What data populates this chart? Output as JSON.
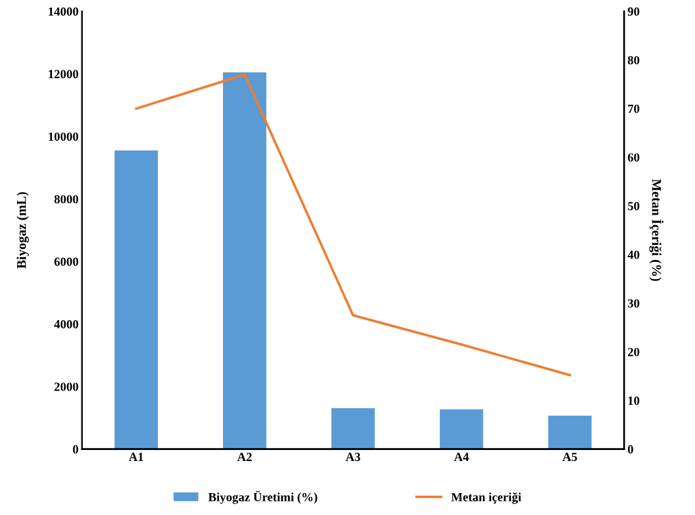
{
  "chart_data": {
    "type": "bar",
    "categories": [
      "A1",
      "A2",
      "A3",
      "A4",
      "A5"
    ],
    "series": [
      {
        "name": "Biyogaz Üretimi (%)",
        "color": "#5b9bd5",
        "values": [
          9550,
          12050,
          1310,
          1270,
          1070
        ]
      },
      {
        "name": "Metan içeriği",
        "type": "line",
        "axis": "y2",
        "color": "#ed7d31",
        "values": [
          70,
          77,
          27.5,
          21.5,
          15.2
        ]
      }
    ],
    "ylabel": "Biyogaz (mL)",
    "y2label": "Metan İçeriği (%)",
    "ylim": [
      0,
      14000
    ],
    "yticks": [
      0,
      2000,
      4000,
      6000,
      8000,
      10000,
      12000,
      14000
    ],
    "y2lim": [
      0,
      90
    ],
    "y2ticks": [
      0,
      10,
      20,
      30,
      40,
      50,
      60,
      70,
      80,
      90
    ],
    "grid": false,
    "legend": "bottom",
    "marker": "none",
    "line_style": "solid"
  }
}
